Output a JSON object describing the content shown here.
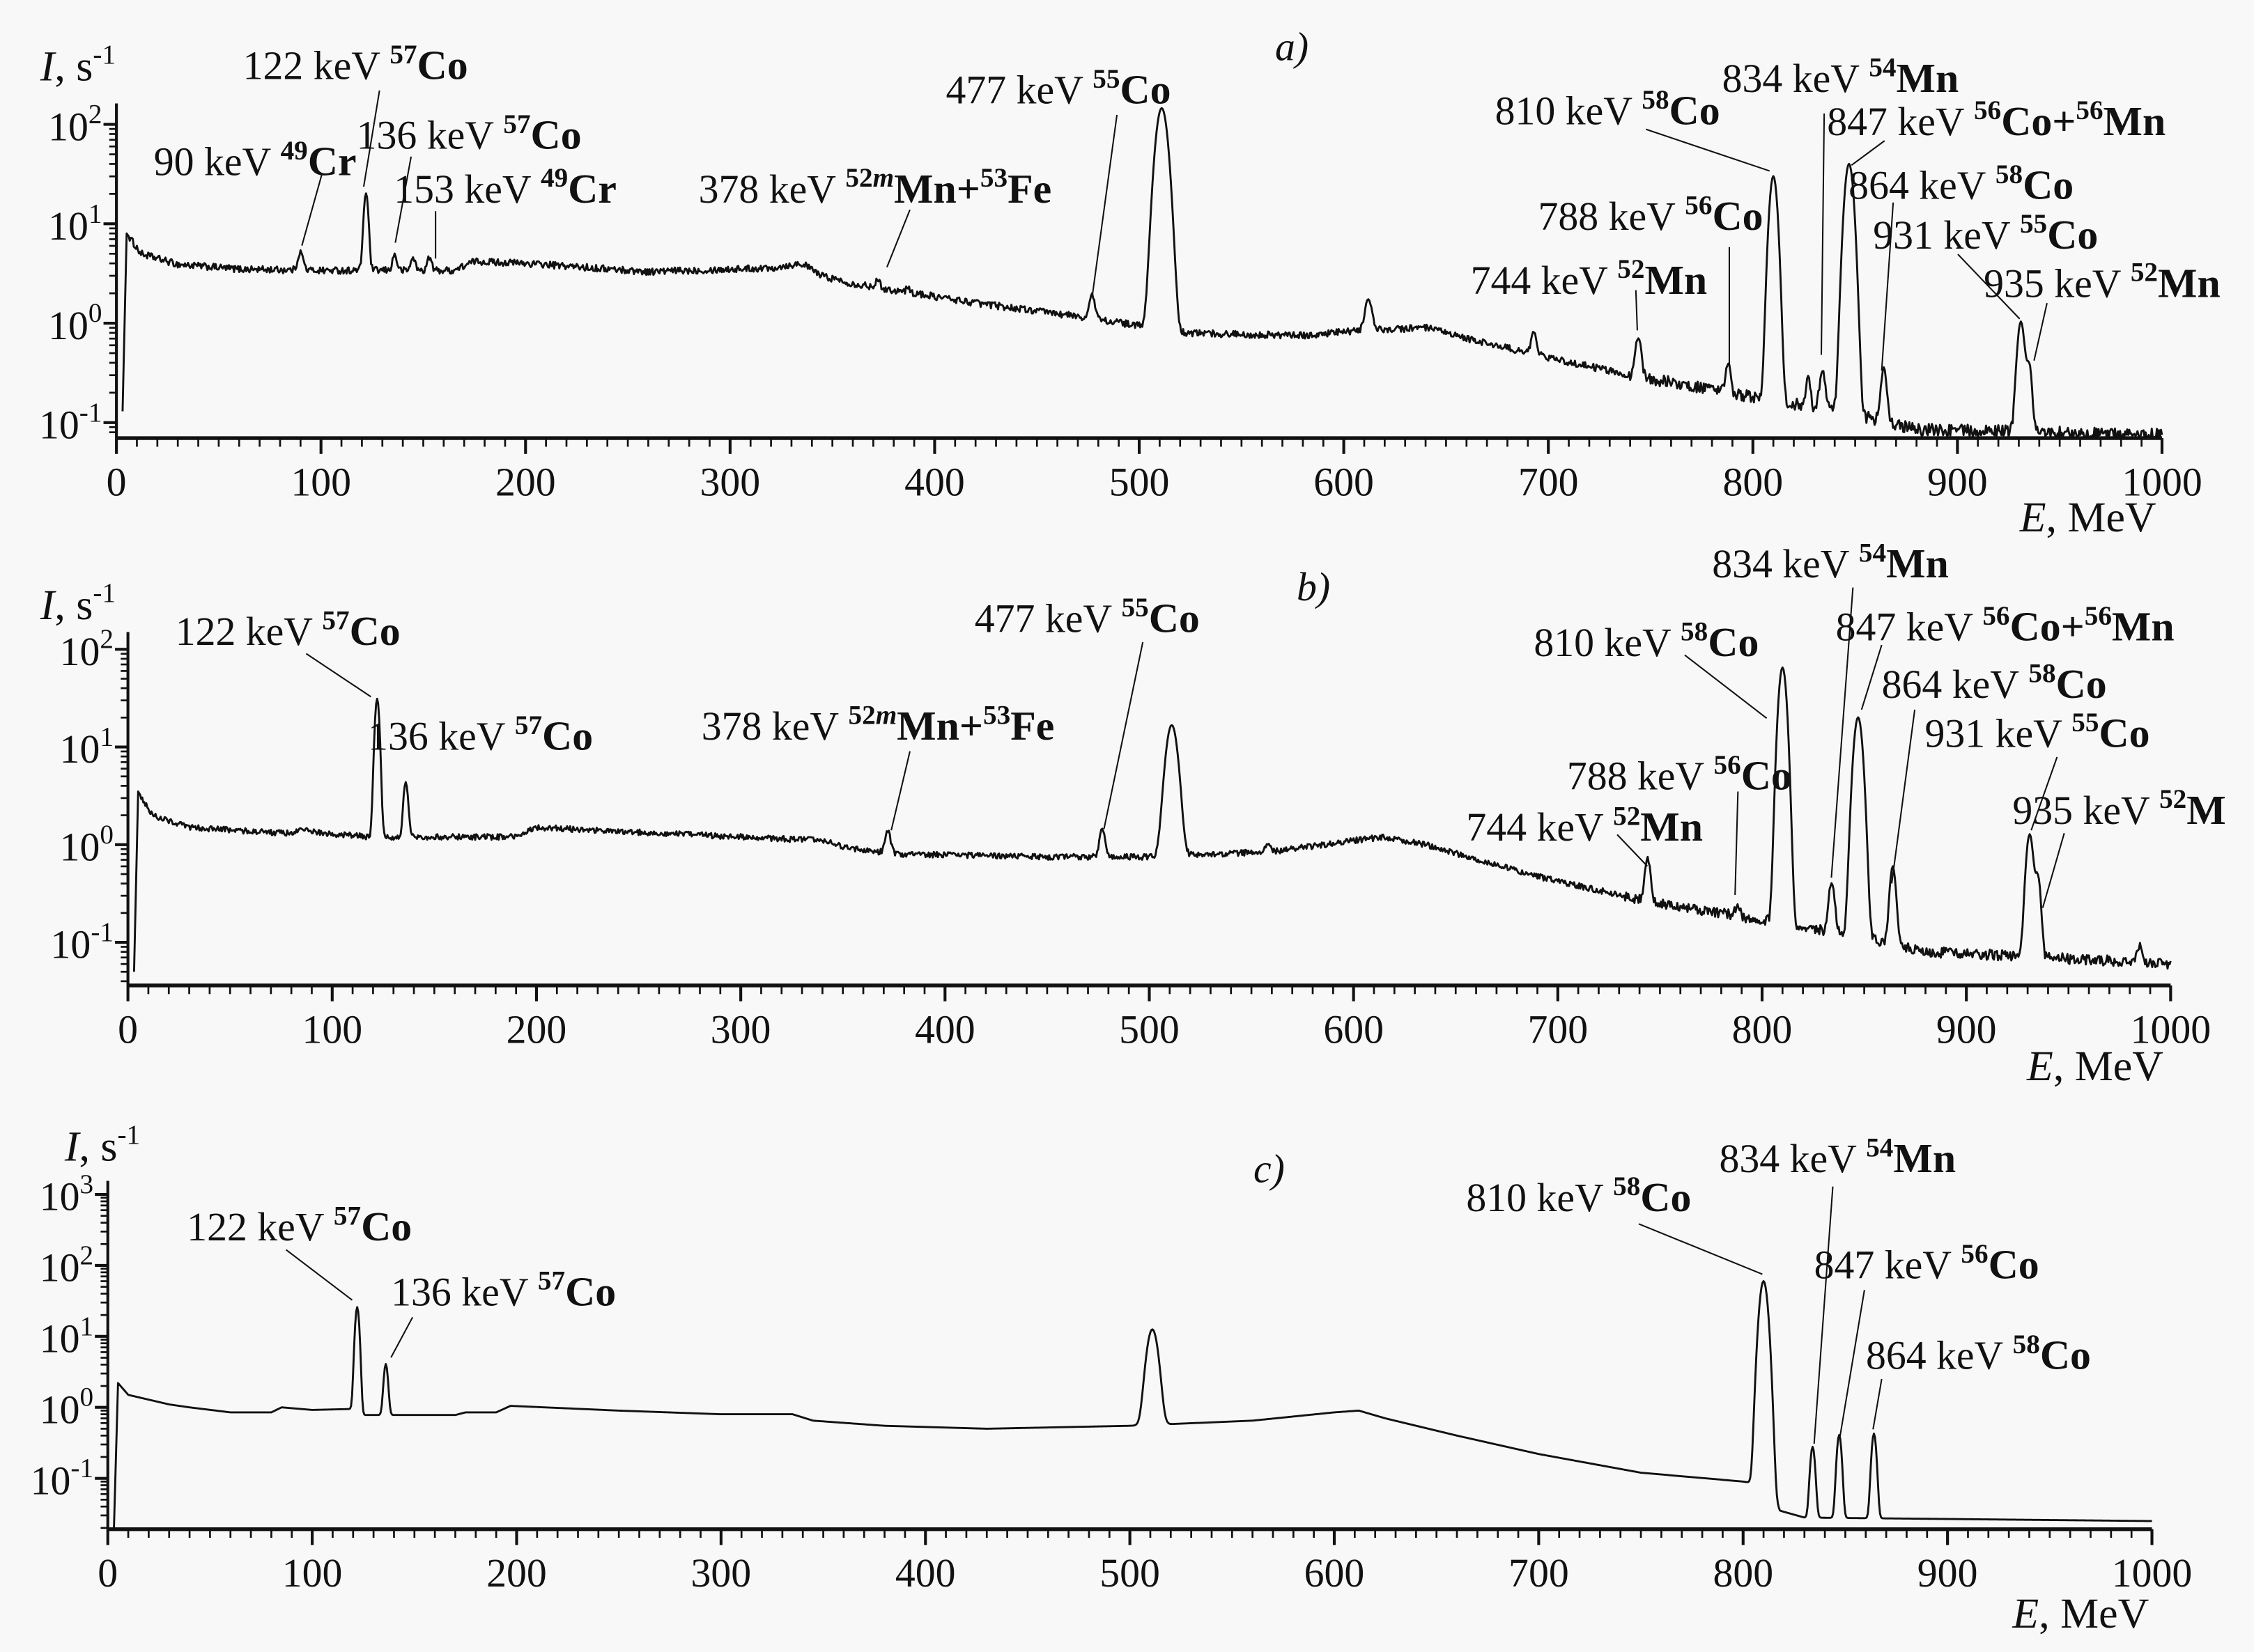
{
  "chart_data": [
    {
      "panel_label": "a)",
      "type": "line",
      "xlabel": {
        "var": "E",
        "unit": ", MeV"
      },
      "ylabel": {
        "var": "I",
        "unit": ", s",
        "exp": "-1"
      },
      "xlim": [
        0,
        1000
      ],
      "yscale": "log",
      "ylim": [
        0.07,
        200
      ],
      "x_ticks": [
        "0",
        "100",
        "200",
        "300",
        "400",
        "500",
        "600",
        "700",
        "800",
        "900",
        "1000"
      ],
      "y_tick_exponents": [
        "-1",
        "0",
        "1",
        "2"
      ],
      "noise": 0.07,
      "baseline": [
        [
          3,
          0.13
        ],
        [
          5,
          8
        ],
        [
          12,
          5
        ],
        [
          30,
          3.9
        ],
        [
          60,
          3.5
        ],
        [
          100,
          3.4
        ],
        [
          165,
          3.4
        ],
        [
          175,
          4.2
        ],
        [
          200,
          4.0
        ],
        [
          260,
          3.3
        ],
        [
          320,
          3.6
        ],
        [
          335,
          4.0
        ],
        [
          345,
          3.0
        ],
        [
          360,
          2.5
        ],
        [
          420,
          1.6
        ],
        [
          480,
          1.1
        ],
        [
          520,
          0.8
        ],
        [
          580,
          0.75
        ],
        [
          610,
          0.85
        ],
        [
          640,
          0.9
        ],
        [
          660,
          0.7
        ],
        [
          700,
          0.45
        ],
        [
          740,
          0.3
        ],
        [
          800,
          0.18
        ],
        [
          850,
          0.12
        ],
        [
          880,
          0.085
        ],
        [
          1000,
          0.075
        ]
      ],
      "peaks": [
        [
          90,
          1.8,
          1.2
        ],
        [
          122,
          17,
          1.0
        ],
        [
          136,
          1.5,
          1.0
        ],
        [
          145,
          1.2,
          1.0
        ],
        [
          153,
          1.2,
          1.0
        ],
        [
          372,
          0.4,
          1.2
        ],
        [
          387,
          0.2,
          1.0
        ],
        [
          477,
          0.8,
          1.2
        ],
        [
          511,
          145,
          2.4
        ],
        [
          612,
          0.9,
          1.5
        ],
        [
          693,
          0.35,
          1.2
        ],
        [
          744,
          0.45,
          1.2
        ],
        [
          788,
          0.2,
          1.0
        ],
        [
          810,
          30,
          1.6
        ],
        [
          827,
          0.15,
          1.0
        ],
        [
          834,
          0.2,
          1.2
        ],
        [
          847,
          40,
          1.8
        ],
        [
          864,
          0.25,
          1.2
        ],
        [
          931,
          0.95,
          1.5
        ],
        [
          935,
          0.3,
          1.2
        ]
      ],
      "annotations": [
        {
          "energy": "122 keV",
          "nuclides": [
            {
              "mass": "57",
              "el": "Co"
            }
          ]
        },
        {
          "energy": "136 keV",
          "nuclides": [
            {
              "mass": "57",
              "el": "Co"
            }
          ]
        },
        {
          "energy": "90 keV",
          "nuclides": [
            {
              "mass": "49",
              "el": "Cr"
            }
          ]
        },
        {
          "energy": "153 keV",
          "nuclides": [
            {
              "mass": "49",
              "el": "Cr"
            }
          ]
        },
        {
          "energy": "378 keV",
          "nuclides": [
            {
              "mass": "52",
              "iso": "m",
              "el": "Mn"
            },
            {
              "mass": "53",
              "el": "Fe"
            }
          ]
        },
        {
          "energy": "477 keV",
          "nuclides": [
            {
              "mass": "55",
              "el": "Co"
            }
          ]
        },
        {
          "energy": "810 keV",
          "nuclides": [
            {
              "mass": "58",
              "el": "Co"
            }
          ]
        },
        {
          "energy": "834 keV",
          "nuclides": [
            {
              "mass": "54",
              "el": "Mn"
            }
          ]
        },
        {
          "energy": "847 keV",
          "nuclides": [
            {
              "mass": "56",
              "el": "Co"
            },
            {
              "mass": "56",
              "el": "Mn"
            }
          ]
        },
        {
          "energy": "864 keV",
          "nuclides": [
            {
              "mass": "58",
              "el": "Co"
            }
          ]
        },
        {
          "energy": "788 keV",
          "nuclides": [
            {
              "mass": "56",
              "el": "Co"
            }
          ]
        },
        {
          "energy": "744 keV",
          "nuclides": [
            {
              "mass": "52",
              "el": "Mn"
            }
          ]
        },
        {
          "energy": "931 keV",
          "nuclides": [
            {
              "mass": "55",
              "el": "Co"
            }
          ]
        },
        {
          "energy": "935 keV",
          "nuclides": [
            {
              "mass": "52",
              "el": "Mn"
            }
          ]
        }
      ]
    },
    {
      "panel_label": "b)",
      "type": "line",
      "xlabel": {
        "var": "E",
        "unit": ", MeV"
      },
      "ylabel": {
        "var": "I",
        "unit": ", s",
        "exp": "-1"
      },
      "xlim": [
        0,
        1000
      ],
      "yscale": "log",
      "ylim": [
        0.05,
        200
      ],
      "x_ticks": [
        "0",
        "100",
        "200",
        "300",
        "400",
        "500",
        "600",
        "700",
        "800",
        "900",
        "1000"
      ],
      "y_tick_exponents": [
        "-1",
        "0",
        "1",
        "2"
      ],
      "noise": 0.06,
      "baseline": [
        [
          3,
          0.05
        ],
        [
          5,
          3.5
        ],
        [
          12,
          2.0
        ],
        [
          30,
          1.5
        ],
        [
          80,
          1.3
        ],
        [
          86,
          1.45
        ],
        [
          95,
          1.3
        ],
        [
          120,
          1.2
        ],
        [
          190,
          1.2
        ],
        [
          200,
          1.5
        ],
        [
          230,
          1.4
        ],
        [
          300,
          1.2
        ],
        [
          340,
          1.1
        ],
        [
          355,
          0.9
        ],
        [
          380,
          0.8
        ],
        [
          450,
          0.75
        ],
        [
          500,
          0.75
        ],
        [
          560,
          0.85
        ],
        [
          600,
          1.1
        ],
        [
          615,
          1.2
        ],
        [
          640,
          0.95
        ],
        [
          660,
          0.7
        ],
        [
          700,
          0.42
        ],
        [
          750,
          0.25
        ],
        [
          800,
          0.17
        ],
        [
          850,
          0.11
        ],
        [
          880,
          0.08
        ],
        [
          970,
          0.065
        ],
        [
          1000,
          0.06
        ]
      ],
      "peaks": [
        [
          122,
          30,
          1.0
        ],
        [
          136,
          3.2,
          1.0
        ],
        [
          372,
          0.55,
          1.2
        ],
        [
          477,
          0.7,
          1.2
        ],
        [
          511,
          16,
          2.4
        ],
        [
          558,
          0.15,
          1.2
        ],
        [
          744,
          0.45,
          1.2
        ],
        [
          788,
          0.06,
          1.0
        ],
        [
          810,
          65,
          1.6
        ],
        [
          834,
          0.28,
          1.3
        ],
        [
          847,
          20,
          1.8
        ],
        [
          864,
          0.5,
          1.3
        ],
        [
          931,
          1.2,
          1.5
        ],
        [
          935,
          0.4,
          1.2
        ],
        [
          985,
          0.03,
          1.2
        ]
      ],
      "annotations": [
        {
          "energy": "122 keV",
          "nuclides": [
            {
              "mass": "57",
              "el": "Co"
            }
          ]
        },
        {
          "energy": "136 keV",
          "nuclides": [
            {
              "mass": "57",
              "el": "Co"
            }
          ]
        },
        {
          "energy": "378 keV",
          "nuclides": [
            {
              "mass": "52",
              "iso": "m",
              "el": "Mn"
            },
            {
              "mass": "53",
              "el": "Fe"
            }
          ]
        },
        {
          "energy": "477 keV",
          "nuclides": [
            {
              "mass": "55",
              "el": "Co"
            }
          ]
        },
        {
          "energy": "834 keV",
          "nuclides": [
            {
              "mass": "54",
              "el": "Mn"
            }
          ]
        },
        {
          "energy": "810 keV",
          "nuclides": [
            {
              "mass": "58",
              "el": "Co"
            }
          ]
        },
        {
          "energy": "847 keV",
          "nuclides": [
            {
              "mass": "56",
              "el": "Co"
            },
            {
              "mass": "56",
              "el": "Mn"
            }
          ]
        },
        {
          "energy": "864 keV",
          "nuclides": [
            {
              "mass": "58",
              "el": "Co"
            }
          ]
        },
        {
          "energy": "931 keV",
          "nuclides": [
            {
              "mass": "55",
              "el": "Co"
            }
          ]
        },
        {
          "energy": "788 keV",
          "nuclides": [
            {
              "mass": "56",
              "el": "Co"
            }
          ]
        },
        {
          "energy": "744 keV",
          "nuclides": [
            {
              "mass": "52",
              "el": "Mn"
            }
          ]
        },
        {
          "energy": "935 keV",
          "nuclides": [
            {
              "mass": "52",
              "el": "M"
            }
          ]
        }
      ]
    },
    {
      "panel_label": "c)",
      "type": "line",
      "xlabel": {
        "var": "E",
        "unit": ", MeV"
      },
      "ylabel": {
        "var": "I",
        "unit": ", s",
        "exp": "-1"
      },
      "xlim": [
        0,
        1000
      ],
      "yscale": "log",
      "ylim": [
        0.02,
        1000
      ],
      "x_ticks": [
        "0",
        "100",
        "200",
        "300",
        "400",
        "500",
        "600",
        "700",
        "800",
        "900",
        "1000"
      ],
      "y_tick_exponents": [
        "-1",
        "0",
        "1",
        "2",
        "3"
      ],
      "noise": 0,
      "baseline": [
        [
          3,
          0.02
        ],
        [
          5,
          2.2
        ],
        [
          10,
          1.5
        ],
        [
          30,
          1.1
        ],
        [
          40,
          1.0
        ],
        [
          60,
          0.85
        ],
        [
          80,
          0.85
        ],
        [
          85,
          1.0
        ],
        [
          100,
          0.92
        ],
        [
          120,
          0.95
        ],
        [
          124,
          0.78
        ],
        [
          170,
          0.78
        ],
        [
          175,
          0.85
        ],
        [
          190,
          0.85
        ],
        [
          197,
          1.05
        ],
        [
          250,
          0.9
        ],
        [
          300,
          0.8
        ],
        [
          335,
          0.8
        ],
        [
          345,
          0.65
        ],
        [
          380,
          0.55
        ],
        [
          430,
          0.5
        ],
        [
          500,
          0.55
        ],
        [
          560,
          0.65
        ],
        [
          600,
          0.85
        ],
        [
          612,
          0.9
        ],
        [
          625,
          0.7
        ],
        [
          660,
          0.4
        ],
        [
          700,
          0.22
        ],
        [
          750,
          0.12
        ],
        [
          800,
          0.09
        ],
        [
          812,
          0.08
        ],
        [
          818,
          0.035
        ],
        [
          830,
          0.028
        ],
        [
          1000,
          0.025
        ]
      ],
      "peaks": [
        [
          122,
          25,
          0.9
        ],
        [
          136,
          3.3,
          0.9
        ],
        [
          511,
          12,
          2.2
        ],
        [
          810,
          60,
          1.6
        ],
        [
          834,
          0.25,
          1.0
        ],
        [
          847,
          0.38,
          1.0
        ],
        [
          864,
          0.4,
          1.0
        ]
      ],
      "annotations": [
        {
          "energy": "122 keV",
          "nuclides": [
            {
              "mass": "57",
              "el": "Co"
            }
          ]
        },
        {
          "energy": "136 keV",
          "nuclides": [
            {
              "mass": "57",
              "el": "Co"
            }
          ]
        },
        {
          "energy": "810 keV",
          "nuclides": [
            {
              "mass": "58",
              "el": "Co"
            }
          ]
        },
        {
          "energy": "834 keV",
          "nuclides": [
            {
              "mass": "54",
              "el": "Mn"
            }
          ]
        },
        {
          "energy": "847 keV",
          "nuclides": [
            {
              "mass": "56",
              "el": "Co"
            }
          ]
        },
        {
          "energy": "864 keV",
          "nuclides": [
            {
              "mass": "58",
              "el": "Co"
            }
          ]
        }
      ]
    }
  ]
}
